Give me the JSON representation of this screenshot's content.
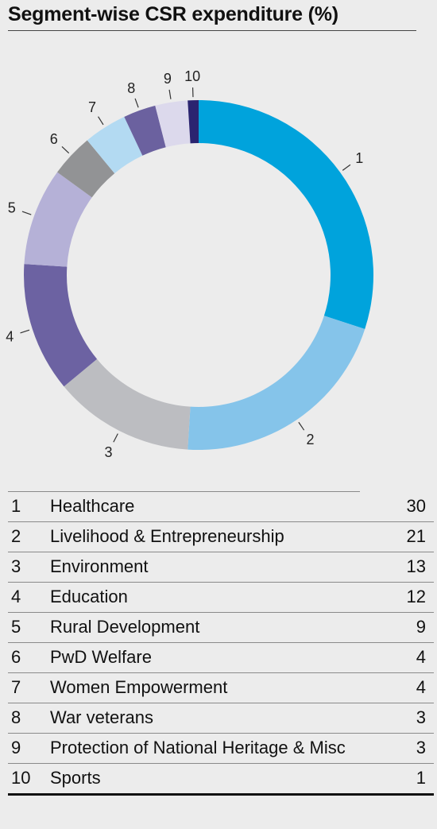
{
  "title": "Segment-wise CSR expenditure (%)",
  "colors": [
    "#00a3dc",
    "#85c4ea",
    "#bcbdc1",
    "#6c62a2",
    "#b5b1d7",
    "#929395",
    "#b3daf2",
    "#6b619f",
    "#dcd9ec",
    "#2b2470"
  ],
  "chart_data": {
    "type": "pie",
    "title": "Segment-wise CSR expenditure (%)",
    "categories": [
      "Healthcare",
      "Livelihood & Entrepreneurship",
      "Environment",
      "Education",
      "Rural Development",
      "PwD Welfare",
      "Women Empowerment",
      "War veterans",
      "Protection of National Heritage & Misc",
      "Sports"
    ],
    "slice_labels": [
      "1",
      "2",
      "3",
      "4",
      "5",
      "6",
      "7",
      "8",
      "9",
      "10"
    ],
    "values": [
      30,
      21,
      13,
      12,
      9,
      4,
      4,
      3,
      3,
      1
    ]
  },
  "legend": [
    {
      "num": "1",
      "label": "Healthcare",
      "value": "30"
    },
    {
      "num": "2",
      "label": "Livelihood & Entrepreneurship",
      "value": "21"
    },
    {
      "num": "3",
      "label": "Environment",
      "value": "13"
    },
    {
      "num": "4",
      "label": "Education",
      "value": "12"
    },
    {
      "num": "5",
      "label": "Rural Development",
      "value": "9"
    },
    {
      "num": "6",
      "label": "PwD Welfare",
      "value": "4"
    },
    {
      "num": "7",
      "label": "Women Empowerment",
      "value": "4"
    },
    {
      "num": "8",
      "label": "War veterans",
      "value": "3"
    },
    {
      "num": "9",
      "label": "Protection of National Heritage & Misc",
      "value": "3"
    },
    {
      "num": "10",
      "label": "Sports",
      "value": "1"
    }
  ]
}
